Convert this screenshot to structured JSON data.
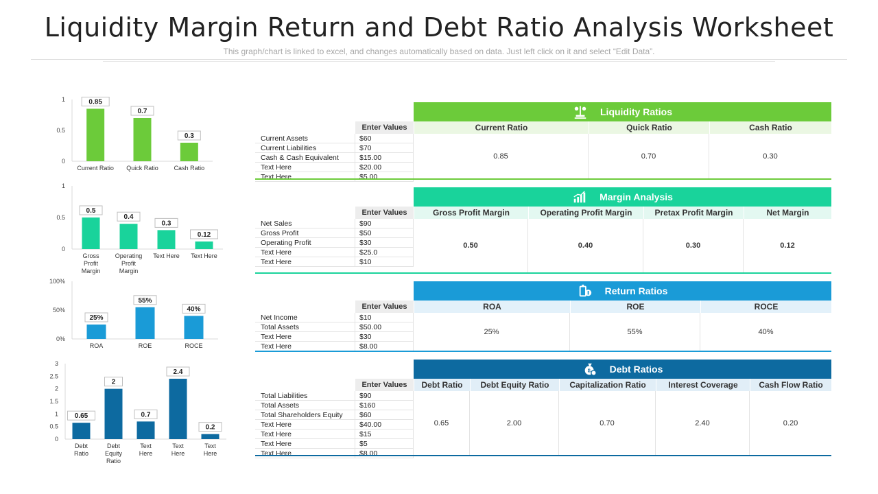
{
  "header": {
    "title": "Liquidity Margin Return and Debt Ratio Analysis Worksheet",
    "subtitle": "This graph/chart is linked to excel, and changes automatically based on data. Just left click on it and select “Edit Data”."
  },
  "colors": {
    "liquidity": "#6ccb3a",
    "liquidity_light": "#ebf7e3",
    "margin": "#19d39b",
    "margin_light": "#e3f8f1",
    "return": "#1a9bd7",
    "return_light": "#e3f1fa",
    "debt": "#0d6aa0",
    "debt_light": "#e1eef7",
    "enter_values_bg": "#ededed"
  },
  "chart_data": [
    {
      "type": "bar",
      "categories": [
        "Current Ratio",
        "Quick Ratio",
        "Cash Ratio"
      ],
      "values": [
        0.85,
        0.7,
        0.3
      ],
      "data_labels": [
        "0.85",
        "0.7",
        "0.3"
      ],
      "yticks": [
        "0",
        "0.5",
        "1"
      ],
      "ylim": [
        0,
        1
      ],
      "color": "#6ccb3a"
    },
    {
      "type": "bar",
      "categories": [
        "Gross Profit Margin",
        "Operating Profit Margin",
        "Text Here",
        "Text Here"
      ],
      "values": [
        0.5,
        0.4,
        0.3,
        0.12
      ],
      "data_labels": [
        "0.5",
        "0.4",
        "0.3",
        "0.12"
      ],
      "yticks": [
        "0",
        "0.5",
        "1"
      ],
      "ylim": [
        0,
        1
      ],
      "color": "#19d39b"
    },
    {
      "type": "bar",
      "categories": [
        "ROA",
        "ROE",
        "ROCE"
      ],
      "values": [
        0.25,
        0.55,
        0.4
      ],
      "data_labels": [
        "25%",
        "55%",
        "40%"
      ],
      "yticks": [
        "0%",
        "50%",
        "100%"
      ],
      "ylim": [
        0,
        1
      ],
      "color": "#1a9bd7"
    },
    {
      "type": "bar",
      "categories": [
        "Debt Ratio",
        "Debt Equity Ratio",
        "Text Here",
        "Text Here",
        "Text Here"
      ],
      "values": [
        0.65,
        2,
        0.7,
        2.4,
        0.2
      ],
      "data_labels": [
        "0.65",
        "2",
        "0.7",
        "2.4",
        "0.2"
      ],
      "yticks": [
        "0",
        "0.5",
        "1",
        "1.5",
        "2",
        "2.5",
        "3"
      ],
      "ylim": [
        0,
        3
      ],
      "color": "#0d6aa0"
    }
  ],
  "tables": {
    "liquidity": {
      "heading": "Liquidity Ratios",
      "icon": "scale-icon",
      "enter_values": "Enter Values",
      "rows": [
        {
          "label": "Current Assets",
          "value": "$60"
        },
        {
          "label": "Current Liabilities",
          "value": "$70"
        },
        {
          "label": "Cash & Cash Equivalent",
          "value": "$15.00"
        },
        {
          "label": "Text Here",
          "value": "$20.00"
        },
        {
          "label": "Text Here",
          "value": "$5.00"
        }
      ],
      "columns": [
        "Current Ratio",
        "Quick Ratio",
        "Cash Ratio"
      ],
      "results": [
        "0.85",
        "0.70",
        "0.30"
      ]
    },
    "margin": {
      "heading": "Margin Analysis",
      "icon": "growth-chart-icon",
      "enter_values": "Enter Values",
      "rows": [
        {
          "label": "Net Sales",
          "value": "$90"
        },
        {
          "label": "Gross Profit",
          "value": "$50"
        },
        {
          "label": "Operating Profit",
          "value": "$30"
        },
        {
          "label": "Text Here",
          "value": "$25.0"
        },
        {
          "label": "Text Here",
          "value": "$10"
        }
      ],
      "columns": [
        "Gross Profit Margin",
        "Operating Profit Margin",
        "Pretax Profit Margin",
        "Net Margin"
      ],
      "results": [
        "0.50",
        "0.40",
        "0.30",
        "0.12"
      ]
    },
    "return": {
      "heading": "Return Ratios",
      "icon": "money-return-icon",
      "enter_values": "Enter Values",
      "rows": [
        {
          "label": "Net Income",
          "value": "$10"
        },
        {
          "label": "Total Assets",
          "value": "$50.00"
        },
        {
          "label": "Text Here",
          "value": "$30"
        },
        {
          "label": "Text Here",
          "value": "$8.00"
        }
      ],
      "columns": [
        "ROA",
        "ROE",
        "ROCE"
      ],
      "results": [
        "25%",
        "55%",
        "40%"
      ]
    },
    "debt": {
      "heading": "Debt Ratios",
      "icon": "money-bag-icon",
      "enter_values": "Enter Values",
      "rows": [
        {
          "label": "Total Liabilities",
          "value": "$90"
        },
        {
          "label": "Total Assets",
          "value": "$160"
        },
        {
          "label": "Total Shareholders Equity",
          "value": "$60"
        },
        {
          "label": "Text Here",
          "value": "$40.00"
        },
        {
          "label": "Text Here",
          "value": "$15"
        },
        {
          "label": "Text Here",
          "value": "$5"
        },
        {
          "label": "Text Here",
          "value": "$8.00"
        }
      ],
      "columns": [
        "Debt Ratio",
        "Debt Equity  Ratio",
        "Capitalization Ratio",
        "Interest Coverage",
        "Cash Flow Ratio"
      ],
      "results": [
        "0.65",
        "2.00",
        "0.70",
        "2.40",
        "0.20"
      ]
    }
  }
}
